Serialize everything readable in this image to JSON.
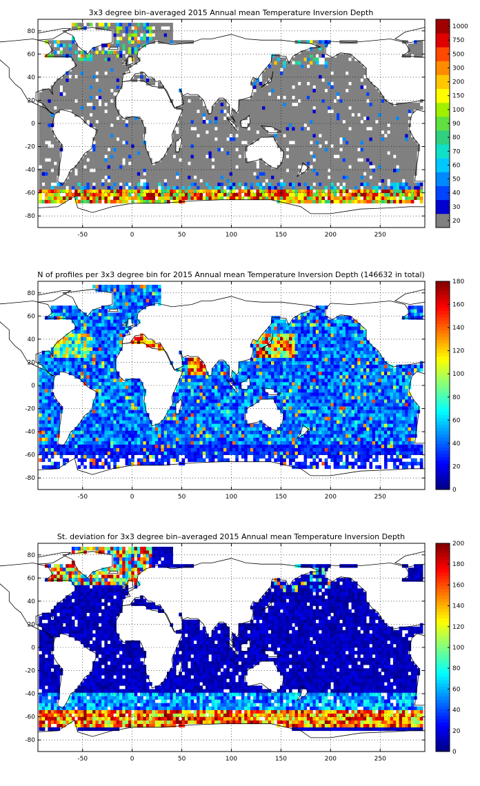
{
  "chart_data": [
    {
      "type": "heatmap",
      "title": "3x3 degree bin–averaged 2015 Annual mean Temperature Inversion Depth",
      "xlabel": "",
      "ylabel": "",
      "xlim": [
        -95,
        295
      ],
      "ylim": [
        -90,
        90
      ],
      "x_ticks": [
        -50,
        0,
        50,
        100,
        150,
        200,
        250
      ],
      "y_ticks": [
        80,
        60,
        40,
        20,
        0,
        -20,
        -40,
        -60,
        -80
      ],
      "grid": true,
      "colorbar": {
        "scale": "categorical",
        "labels": [
          "20",
          "30",
          "40",
          "50",
          "60",
          "70",
          "80",
          "90",
          "100",
          "150",
          "200",
          "300",
          "500",
          "750",
          "1000"
        ],
        "colors": [
          "#808080",
          "#0000d0",
          "#0044ff",
          "#0088ff",
          "#00c8ff",
          "#10e0c8",
          "#30d080",
          "#60e040",
          "#a0f000",
          "#ffff00",
          "#ffc800",
          "#ff8c00",
          "#ff4800",
          "#e00000",
          "#a00000"
        ]
      },
      "data_summary": "Most ocean bins are below 20 m (grey); the largest inversion depths (200–1000 m) lie in the Southern Ocean near 60–70S and in the Nordic and Bering seas."
    },
    {
      "type": "heatmap",
      "title": "N of profiles per 3x3 degree bin for 2015 Annual mean Temperature Inversion Depth  (146632 in total)",
      "xlabel": "",
      "ylabel": "",
      "xlim": [
        -95,
        295
      ],
      "ylim": [
        -90,
        90
      ],
      "x_ticks": [
        -50,
        0,
        50,
        100,
        150,
        200,
        250
      ],
      "y_ticks": [
        80,
        60,
        40,
        20,
        0,
        -20,
        -40,
        -60,
        -80
      ],
      "grid": true,
      "total_profiles": 146632,
      "colorbar": {
        "scale": "jet",
        "min": 0,
        "max": 180,
        "ticks": [
          0,
          20,
          40,
          60,
          80,
          100,
          120,
          140,
          160,
          180
        ]
      },
      "data_summary": "Most bins hold 20–60 profiles; the densest sampling (160–180) is in the Mediterranean, the Arabian Sea, the Kuroshio region and parts of the North Atlantic."
    },
    {
      "type": "heatmap",
      "title": "St. deviation for 3x3 degree bin–averaged 2015 Annual mean Temperature Inversion Depth",
      "xlabel": "",
      "ylabel": "",
      "xlim": [
        -95,
        295
      ],
      "ylim": [
        -90,
        90
      ],
      "x_ticks": [
        -50,
        0,
        50,
        100,
        150,
        200,
        250
      ],
      "y_ticks": [
        80,
        60,
        40,
        20,
        0,
        -20,
        -40,
        -60,
        -80
      ],
      "grid": true,
      "colorbar": {
        "scale": "jet",
        "min": 0,
        "max": 200,
        "ticks": [
          0,
          20,
          40,
          60,
          80,
          100,
          120,
          140,
          160,
          180,
          200
        ]
      },
      "data_summary": "Standard deviation is low (below 20) over most of the ocean, rising to 120–200 along 55–65S in the Southern Ocean and in the Nordic seas."
    }
  ]
}
